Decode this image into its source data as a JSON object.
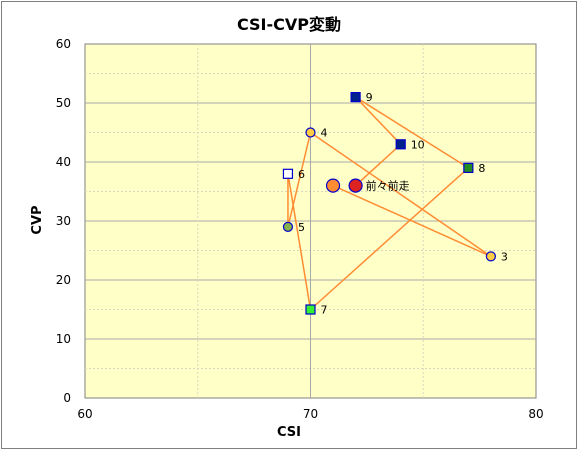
{
  "chart_data": {
    "type": "scatter",
    "title": "CSI-CVP変動",
    "xlabel": "CSI",
    "ylabel": "CVP",
    "xlim": [
      60,
      80
    ],
    "ylim": [
      0,
      60
    ],
    "xticks": [
      "60",
      "70",
      "80"
    ],
    "yticks": [
      "0",
      "10",
      "20",
      "30",
      "40",
      "50",
      "60"
    ],
    "grid": true,
    "plot_background": "#ffffc8",
    "line_color": "#ff8c33",
    "sequence": [
      {
        "label": "",
        "x": 71,
        "y": 36,
        "marker": "circle",
        "fill": "#ff8c33",
        "stroke": "#0000cc",
        "size": "large"
      },
      {
        "label": "3",
        "x": 78,
        "y": 24,
        "marker": "circle",
        "fill": "#ffcc44",
        "stroke": "#0000cc",
        "size": "small"
      },
      {
        "label": "4",
        "x": 70,
        "y": 45,
        "marker": "circle",
        "fill": "#ffcc44",
        "stroke": "#0000cc",
        "size": "small"
      },
      {
        "label": "5",
        "x": 69,
        "y": 29,
        "marker": "circle",
        "fill": "#88b04b",
        "stroke": "#0000cc",
        "size": "small"
      },
      {
        "label": "6",
        "x": 69,
        "y": 38,
        "marker": "square",
        "fill": "#ffffff",
        "stroke": "#0000cc",
        "size": "small"
      },
      {
        "label": "7",
        "x": 70,
        "y": 15,
        "marker": "square",
        "fill": "#33ee33",
        "stroke": "#0000cc",
        "size": "small"
      },
      {
        "label": "8",
        "x": 77,
        "y": 39,
        "marker": "square",
        "fill": "#228b22",
        "stroke": "#0000cc",
        "size": "small"
      },
      {
        "label": "9",
        "x": 72,
        "y": 51,
        "marker": "square",
        "fill": "#00208a",
        "stroke": "#0000cc",
        "size": "small"
      },
      {
        "label": "10",
        "x": 74,
        "y": 43,
        "marker": "square",
        "fill": "#00208a",
        "stroke": "#0000cc",
        "size": "small"
      },
      {
        "label": "前々前走",
        "x": 72,
        "y": 36,
        "marker": "circle",
        "fill": "#dd2222",
        "stroke": "#0000cc",
        "size": "large"
      }
    ]
  }
}
